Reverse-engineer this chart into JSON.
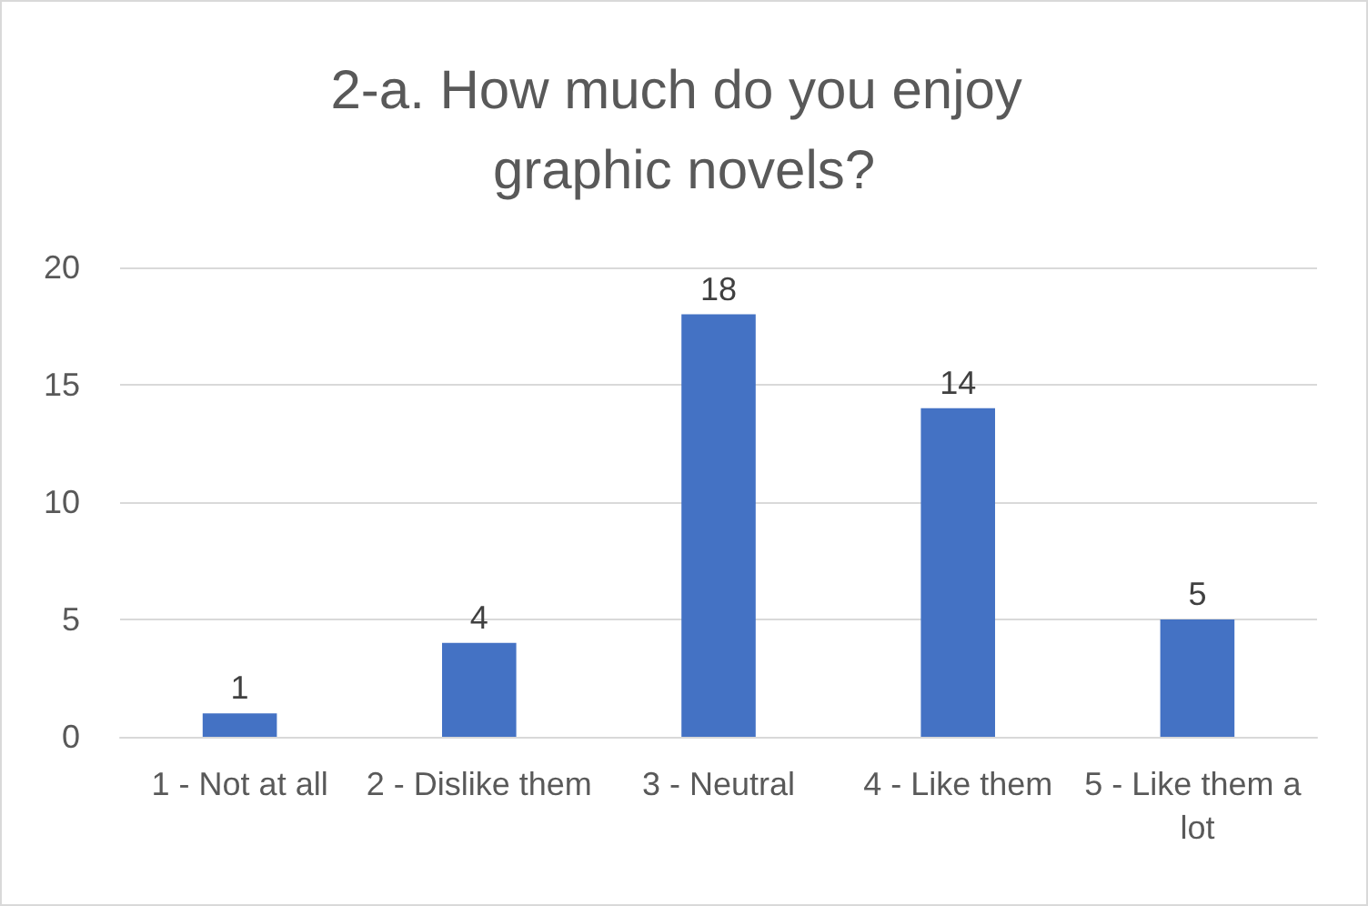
{
  "chart_data": {
    "type": "bar",
    "title": "2-a. How much do you enjoy graphic novels?",
    "categories": [
      "1 - Not at all",
      "2 - Dislike them",
      "3 - Neutral",
      "4 - Like them",
      "5 - Like them a lot"
    ],
    "values": [
      1,
      4,
      18,
      14,
      5
    ],
    "color": "#4472c4",
    "ylim": [
      0,
      20
    ],
    "yticks": [
      0,
      5,
      10,
      15,
      20
    ],
    "grid": "y",
    "data_labels": true
  }
}
